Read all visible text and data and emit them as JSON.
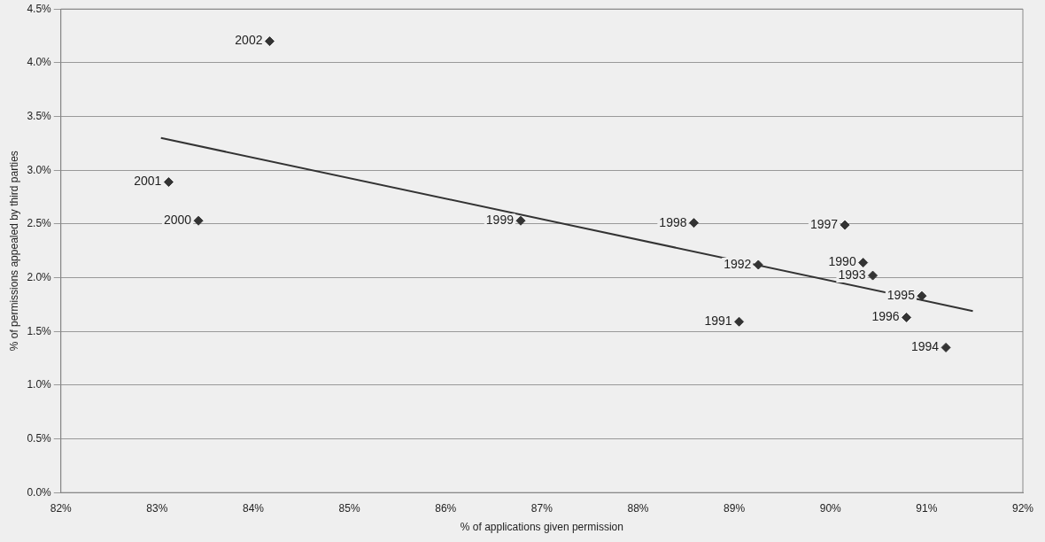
{
  "chart_data": {
    "type": "scatter",
    "xlabel": "% of applications given permission",
    "ylabel": "% of permissions appealed by third parties",
    "xlim": [
      82,
      92
    ],
    "xticks": [
      {
        "value": 82,
        "label": "82%"
      },
      {
        "value": 83,
        "label": "83%"
      },
      {
        "value": 84,
        "label": "84%"
      },
      {
        "value": 85,
        "label": "85%"
      },
      {
        "value": 86,
        "label": "86%"
      },
      {
        "value": 87,
        "label": "87%"
      },
      {
        "value": 88,
        "label": "88%"
      },
      {
        "value": 89,
        "label": "89%"
      },
      {
        "value": 90,
        "label": "90%"
      },
      {
        "value": 91,
        "label": "91%"
      },
      {
        "value": 92,
        "label": "92%"
      }
    ],
    "ylim": [
      0,
      4.5
    ],
    "yticks": [
      {
        "value": 0,
        "label": "0.0%"
      },
      {
        "value": 0.5,
        "label": "0.5%"
      },
      {
        "value": 1,
        "label": "1.0%"
      },
      {
        "value": 1.5,
        "label": "1.5%"
      },
      {
        "value": 2,
        "label": "2.0%"
      },
      {
        "value": 2.5,
        "label": "2.5%"
      },
      {
        "value": 3,
        "label": "3.0%"
      },
      {
        "value": 3.5,
        "label": "3.5%"
      },
      {
        "value": 4,
        "label": "4.0%"
      },
      {
        "value": 4.5,
        "label": "4.5%"
      }
    ],
    "grid": "y",
    "legend": false,
    "series": [
      {
        "type": "scatter",
        "marker": "diamond",
        "color": "#333333",
        "x": [
          84.17,
          83.12,
          83.43,
          86.78,
          88.58,
          90.15,
          89.25,
          90.34,
          90.44,
          90.95,
          89.05,
          90.79,
          91.2
        ],
        "values": [
          4.2,
          2.89,
          2.53,
          2.53,
          2.51,
          2.49,
          2.12,
          2.14,
          2.02,
          1.83,
          1.59,
          1.63,
          1.35
        ]
      },
      {
        "type": "line",
        "color": "#333333",
        "x": [
          83.04,
          91.48
        ],
        "values": [
          3.3,
          1.69
        ]
      }
    ],
    "annotations": [
      {
        "text": "2002",
        "x": 84.17,
        "y": 4.2
      },
      {
        "text": "2001",
        "x": 83.12,
        "y": 2.89
      },
      {
        "text": "2000",
        "x": 83.43,
        "y": 2.53
      },
      {
        "text": "1999",
        "x": 86.78,
        "y": 2.53
      },
      {
        "text": "1998",
        "x": 88.58,
        "y": 2.51
      },
      {
        "text": "1997",
        "x": 90.15,
        "y": 2.49
      },
      {
        "text": "1992",
        "x": 89.25,
        "y": 2.12
      },
      {
        "text": "1990",
        "x": 90.34,
        "y": 2.14
      },
      {
        "text": "1993",
        "x": 90.44,
        "y": 2.02
      },
      {
        "text": "1995",
        "x": 90.95,
        "y": 1.83
      },
      {
        "text": "1991",
        "x": 89.05,
        "y": 1.59
      },
      {
        "text": "1996",
        "x": 90.79,
        "y": 1.63
      },
      {
        "text": "1994",
        "x": 91.2,
        "y": 1.35
      }
    ]
  }
}
